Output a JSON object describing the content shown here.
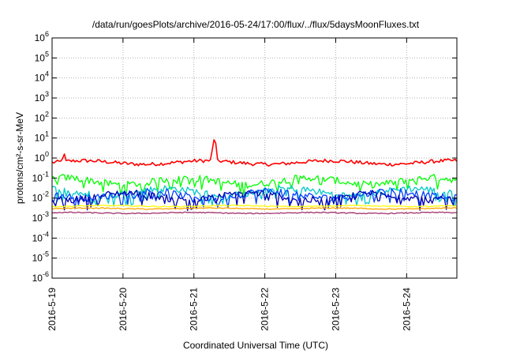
{
  "chart_data": {
    "type": "line",
    "title": "/data/run/goesPlots/archive/2016-05-24/17:00/flux/../flux/5daysMoonFluxes.txt",
    "xlabel": "Coordinated Universal Time (UTC)",
    "ylabel": "protons/cm²-s-sr-MeV",
    "y_scale": "log",
    "ylim": [
      1e-06,
      1000000.0
    ],
    "y_ticks": [
      {
        "exp": "-6",
        "value": 1e-06
      },
      {
        "exp": "-5",
        "value": 1e-05
      },
      {
        "exp": "-4",
        "value": 0.0001
      },
      {
        "exp": "-3",
        "value": 0.001
      },
      {
        "exp": "-2",
        "value": 0.01
      },
      {
        "exp": "-1",
        "value": 0.1
      },
      {
        "exp": "0",
        "value": 1
      },
      {
        "exp": "1",
        "value": 10
      },
      {
        "exp": "2",
        "value": 100
      },
      {
        "exp": "3",
        "value": 1000
      },
      {
        "exp": "4",
        "value": 10000
      },
      {
        "exp": "5",
        "value": 100000
      },
      {
        "exp": "6",
        "value": 1000000
      }
    ],
    "xlim": [
      "2016-05-19T00:00",
      "2016-05-24T17:00"
    ],
    "x_ticks": [
      "2016-5-19",
      "2016-5-20",
      "2016-5-21",
      "2016-5-22",
      "2016-5-23",
      "2016-5-24"
    ],
    "grid": true,
    "legend": "none",
    "series": [
      {
        "color": "#ff0000",
        "level": 0.6,
        "spikes": [
          {
            "x": "2016-05-19T04:00",
            "y": 2.2
          },
          {
            "x": "2016-05-21T07:00",
            "y": 12
          }
        ]
      },
      {
        "color": "#00ff00",
        "level": 0.07
      },
      {
        "color": "#00c8c8",
        "level": 0.02
      },
      {
        "color": "#0040ff",
        "level": 0.015
      },
      {
        "color": "#0000b0",
        "level": 0.012
      },
      {
        "color": "#ffff00",
        "level": 0.004
      },
      {
        "color": "#ffa500",
        "level": 0.003
      },
      {
        "color": "#a0306a",
        "level": 0.0018
      }
    ]
  }
}
